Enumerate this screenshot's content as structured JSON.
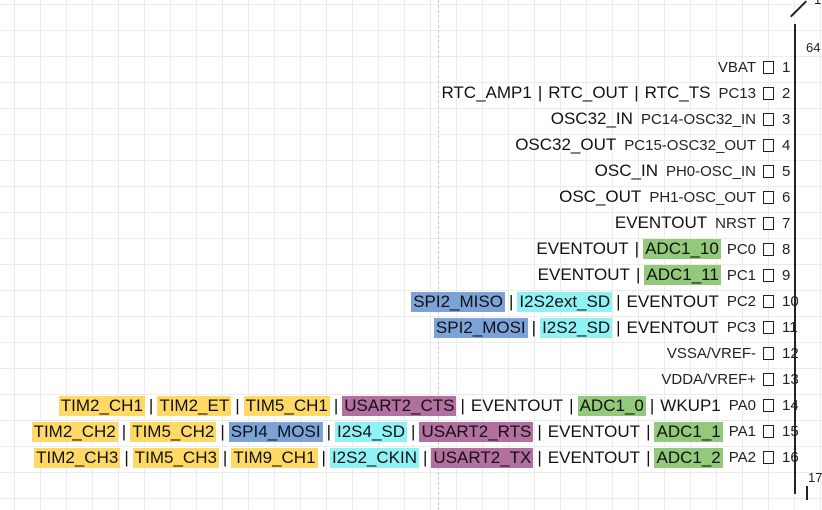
{
  "chip": {
    "top_number": "64",
    "peek_top": "1",
    "peek_bottom": "17"
  },
  "colors": {
    "timer": "#ffd966",
    "usart": "#b36fa0",
    "spi": "#7da2d8",
    "i2s": "#8ff2f5",
    "adc": "#93c97b",
    "plain": ""
  },
  "pins": [
    {
      "num": "1",
      "name": "VBAT",
      "funcs": []
    },
    {
      "num": "2",
      "name": "PC13",
      "funcs": [
        {
          "text": "RTC_AMP1",
          "kind": "plain"
        },
        {
          "text": "RTC_OUT",
          "kind": "plain"
        },
        {
          "text": "RTC_TS",
          "kind": "plain"
        }
      ]
    },
    {
      "num": "3",
      "name": "PC14-OSC32_IN",
      "funcs": [
        {
          "text": "OSC32_IN",
          "kind": "plain"
        }
      ]
    },
    {
      "num": "4",
      "name": "PC15-OSC32_OUT",
      "funcs": [
        {
          "text": "OSC32_OUT",
          "kind": "plain"
        }
      ]
    },
    {
      "num": "5",
      "name": "PH0-OSC_IN",
      "funcs": [
        {
          "text": "OSC_IN",
          "kind": "plain"
        }
      ]
    },
    {
      "num": "6",
      "name": "PH1-OSC_OUT",
      "funcs": [
        {
          "text": "OSC_OUT",
          "kind": "plain"
        }
      ]
    },
    {
      "num": "7",
      "name": "NRST",
      "funcs": [
        {
          "text": "EVENTOUT",
          "kind": "plain"
        }
      ]
    },
    {
      "num": "8",
      "name": "PC0",
      "funcs": [
        {
          "text": "EVENTOUT",
          "kind": "plain"
        },
        {
          "text": "ADC1_10",
          "kind": "adc"
        }
      ]
    },
    {
      "num": "9",
      "name": "PC1",
      "funcs": [
        {
          "text": "EVENTOUT",
          "kind": "plain"
        },
        {
          "text": "ADC1_11",
          "kind": "adc"
        }
      ]
    },
    {
      "num": "10",
      "name": "PC2",
      "funcs": [
        {
          "text": "SPI2_MISO",
          "kind": "spi"
        },
        {
          "text": "I2S2ext_SD",
          "kind": "i2s"
        },
        {
          "text": "EVENTOUT",
          "kind": "plain"
        }
      ]
    },
    {
      "num": "11",
      "name": "PC3",
      "funcs": [
        {
          "text": "SPI2_MOSI",
          "kind": "spi"
        },
        {
          "text": "I2S2_SD",
          "kind": "i2s"
        },
        {
          "text": "EVENTOUT",
          "kind": "plain"
        }
      ]
    },
    {
      "num": "12",
      "name": "VSSA/VREF-",
      "funcs": []
    },
    {
      "num": "13",
      "name": "VDDA/VREF+",
      "funcs": []
    },
    {
      "num": "14",
      "name": "PA0",
      "funcs": [
        {
          "text": "TIM2_CH1",
          "kind": "timer"
        },
        {
          "text": "TIM2_ET",
          "kind": "timer"
        },
        {
          "text": "TIM5_CH1",
          "kind": "timer"
        },
        {
          "text": "USART2_CTS",
          "kind": "usart"
        },
        {
          "text": "EVENTOUT",
          "kind": "plain"
        },
        {
          "text": "ADC1_0",
          "kind": "adc"
        },
        {
          "text": "WKUP1",
          "kind": "plain"
        }
      ]
    },
    {
      "num": "15",
      "name": "PA1",
      "funcs": [
        {
          "text": "TIM2_CH2",
          "kind": "timer"
        },
        {
          "text": "TIM5_CH2",
          "kind": "timer"
        },
        {
          "text": "SPI4_MOSI",
          "kind": "spi"
        },
        {
          "text": "I2S4_SD",
          "kind": "i2s"
        },
        {
          "text": "USART2_RTS",
          "kind": "usart"
        },
        {
          "text": "EVENTOUT",
          "kind": "plain"
        },
        {
          "text": "ADC1_1",
          "kind": "adc"
        }
      ]
    },
    {
      "num": "16",
      "name": "PA2",
      "funcs": [
        {
          "text": "TIM2_CH3",
          "kind": "timer"
        },
        {
          "text": "TIM5_CH3",
          "kind": "timer"
        },
        {
          "text": "TIM9_CH1",
          "kind": "timer"
        },
        {
          "text": "I2S2_CKIN",
          "kind": "i2s"
        },
        {
          "text": "USART2_TX",
          "kind": "usart"
        },
        {
          "text": "EVENTOUT",
          "kind": "plain"
        },
        {
          "text": "ADC1_2",
          "kind": "adc"
        }
      ]
    }
  ]
}
